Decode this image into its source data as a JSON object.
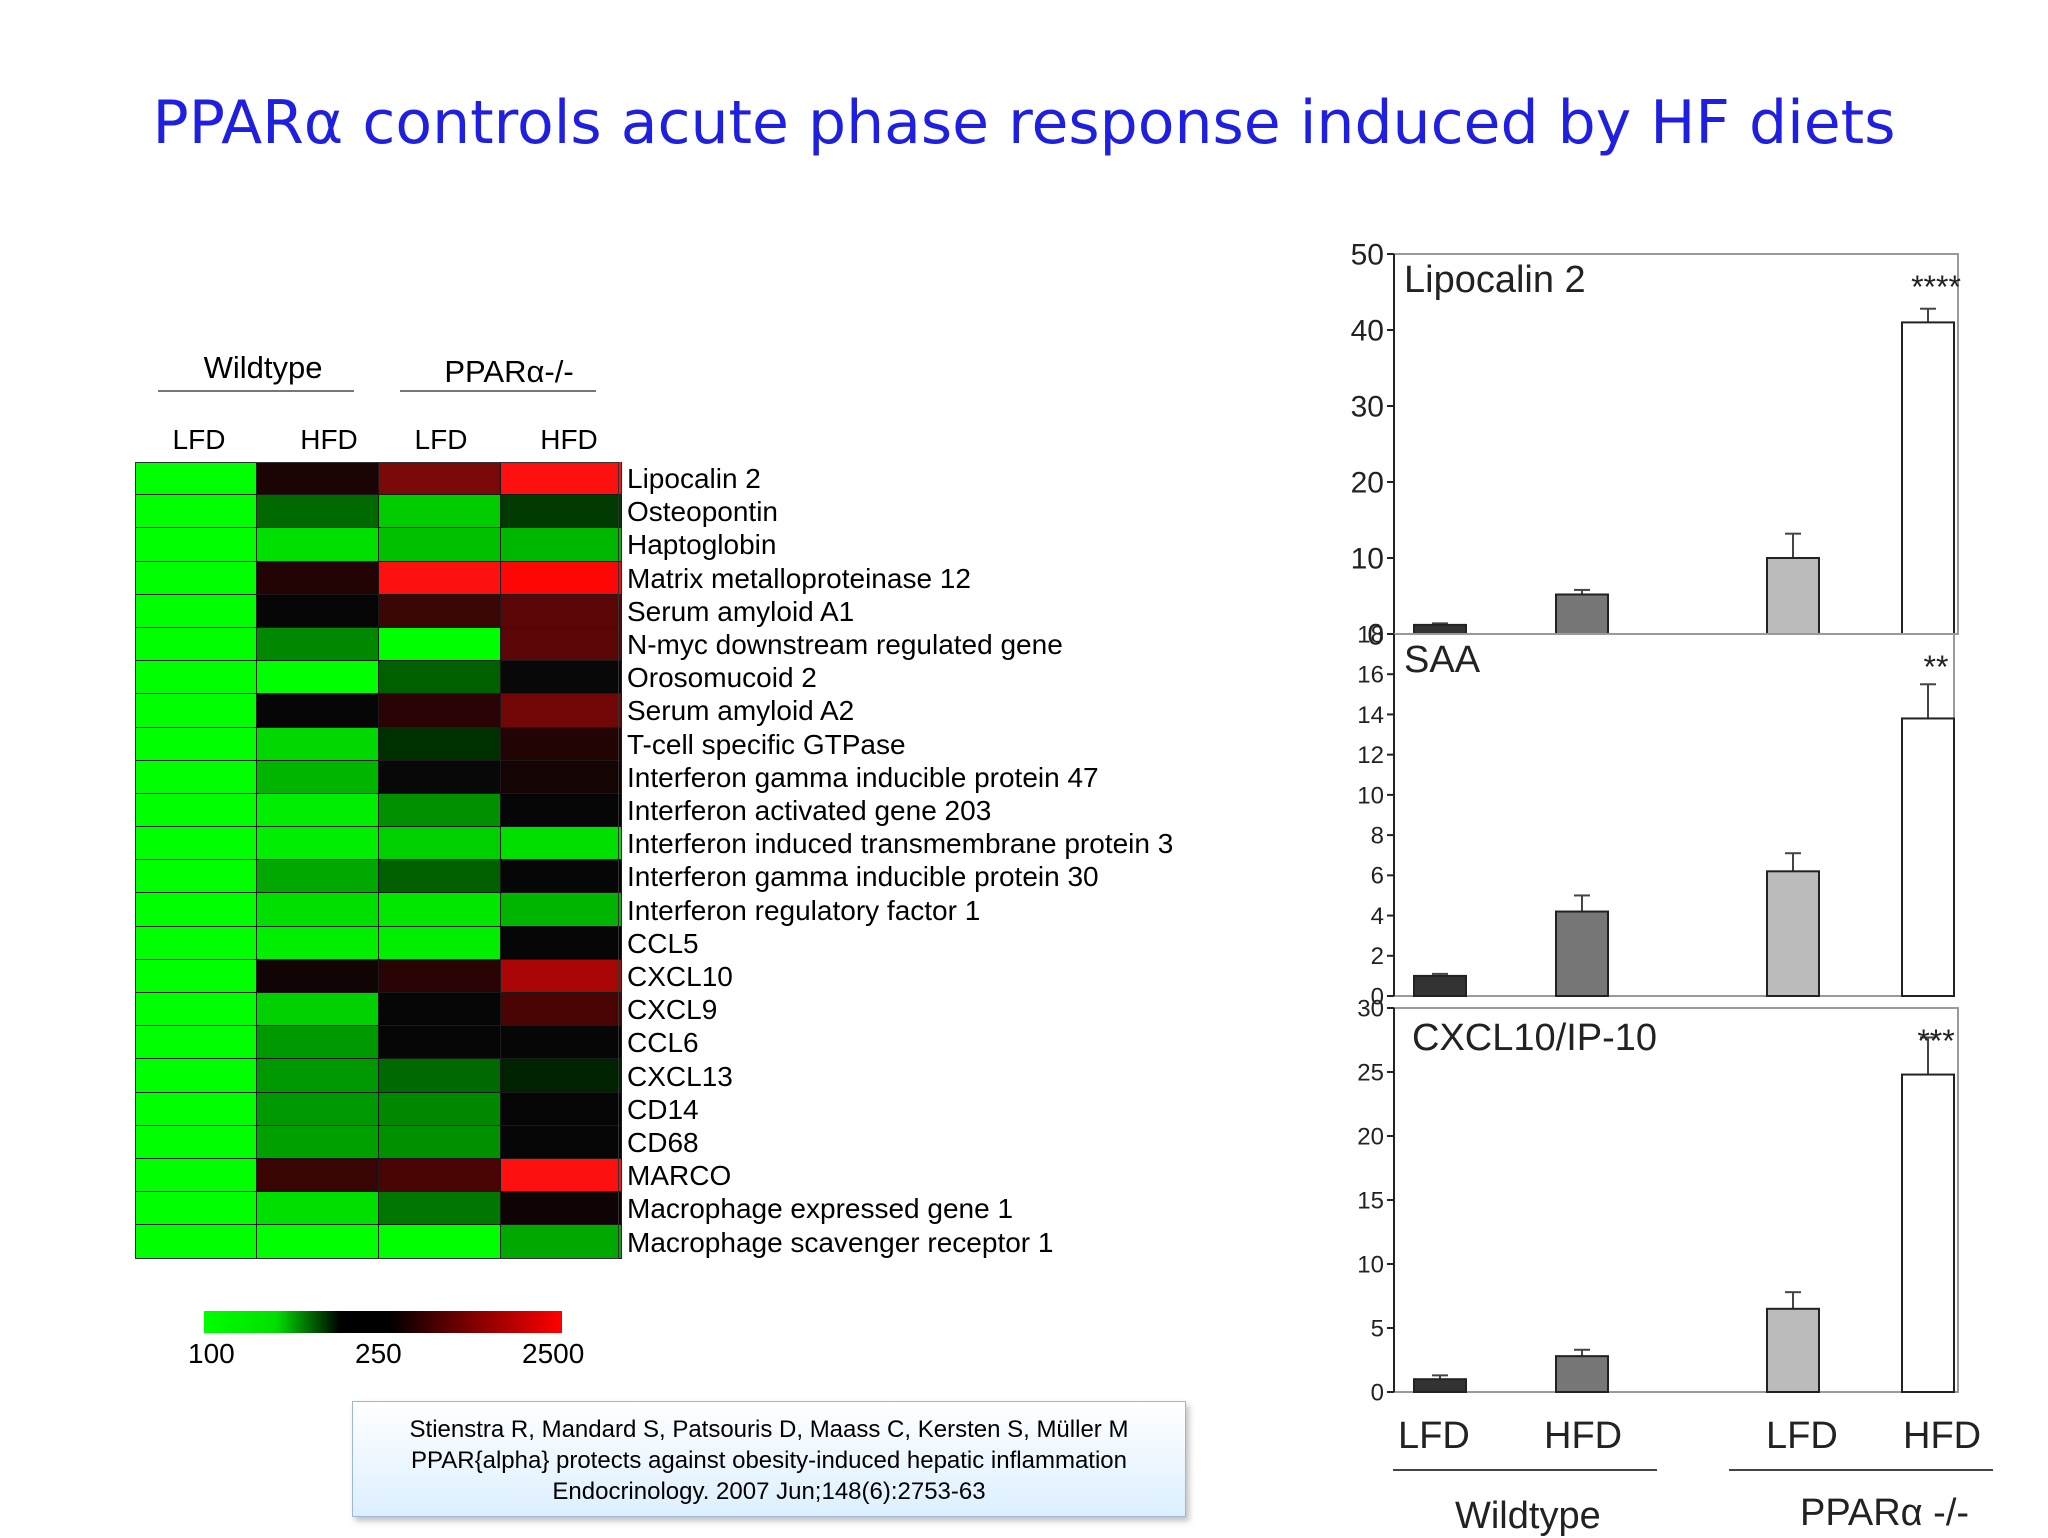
{
  "slide_title": "PPARα controls acute phase response induced by HF diets",
  "heatmap": {
    "group_labels": [
      "Wildtype",
      "PPARα-/-"
    ],
    "column_labels": [
      "LFD",
      "HFD",
      "LFD",
      "HFD"
    ],
    "colorbar_ticks": [
      "100",
      "250",
      "2500"
    ],
    "colors": {
      "low": "#00ff00",
      "mid": "#000000",
      "high": "#ff0000"
    },
    "genes": [
      {
        "name": "Lipocalin 2",
        "cells": [
          "#00ff00",
          "#1a0404",
          "#7a0a0a",
          "#ff1010"
        ]
      },
      {
        "name": "Osteopontin",
        "cells": [
          "#00ff00",
          "#006a00",
          "#00cc00",
          "#003a00"
        ]
      },
      {
        "name": "Haptoglobin",
        "cells": [
          "#00ff00",
          "#00e000",
          "#00c000",
          "#00b800"
        ]
      },
      {
        "name": "Matrix metalloproteinase 12",
        "cells": [
          "#00ff00",
          "#220404",
          "#ff1010",
          "#ff0606"
        ]
      },
      {
        "name": "Serum amyloid A1",
        "cells": [
          "#00ff00",
          "#060606",
          "#3a0606",
          "#5a0606"
        ]
      },
      {
        "name": "N-myc downstream regulated gene",
        "cells": [
          "#00ff00",
          "#008800",
          "#00ff00",
          "#5a0606"
        ]
      },
      {
        "name": "Orosomucoid 2",
        "cells": [
          "#00ff00",
          "#00ff00",
          "#006000",
          "#080808"
        ]
      },
      {
        "name": "Serum amyloid A2",
        "cells": [
          "#00ff00",
          "#060606",
          "#2a0404",
          "#700606"
        ]
      },
      {
        "name": "T-cell specific GTPase",
        "cells": [
          "#00ff00",
          "#00d800",
          "#003000",
          "#220404"
        ]
      },
      {
        "name": "Interferon gamma inducible protein 47",
        "cells": [
          "#00ff00",
          "#00b400",
          "#080808",
          "#140404"
        ]
      },
      {
        "name": "Interferon activated gene 203",
        "cells": [
          "#00ff00",
          "#00ee00",
          "#009000",
          "#060606"
        ]
      },
      {
        "name": "Interferon induced transmembrane protein 3",
        "cells": [
          "#00ff00",
          "#00ee00",
          "#00d000",
          "#00e000"
        ]
      },
      {
        "name": "Interferon gamma inducible protein 30",
        "cells": [
          "#00ff00",
          "#00a800",
          "#006000",
          "#060606"
        ]
      },
      {
        "name": "Interferon regulatory factor 1",
        "cells": [
          "#00ff00",
          "#00e000",
          "#00e800",
          "#00b400"
        ]
      },
      {
        "name": "CCL5",
        "cells": [
          "#00ff00",
          "#00f000",
          "#00f000",
          "#060606"
        ]
      },
      {
        "name": "CXCL10",
        "cells": [
          "#00ff00",
          "#100404",
          "#2a0404",
          "#aa0606"
        ]
      },
      {
        "name": "CXCL9",
        "cells": [
          "#00ff00",
          "#00d000",
          "#060606",
          "#4a0404"
        ]
      },
      {
        "name": "CCL6",
        "cells": [
          "#00ff00",
          "#009800",
          "#060606",
          "#060606"
        ]
      },
      {
        "name": "CXCL13",
        "cells": [
          "#00ff00",
          "#009800",
          "#006a00",
          "#002200"
        ]
      },
      {
        "name": "CD14",
        "cells": [
          "#00ff00",
          "#009800",
          "#008800",
          "#060606"
        ]
      },
      {
        "name": "CD68",
        "cells": [
          "#00ff00",
          "#00a000",
          "#009000",
          "#060606"
        ]
      },
      {
        "name": "MARCO",
        "cells": [
          "#00ff00",
          "#380404",
          "#4a0404",
          "#ff1010"
        ]
      },
      {
        "name": "Macrophage expressed gene 1",
        "cells": [
          "#00ff00",
          "#00e000",
          "#007800",
          "#0e0404"
        ]
      },
      {
        "name": "Macrophage scavenger receptor 1",
        "cells": [
          "#00ff00",
          "#00ff00",
          "#00ff00",
          "#00a800"
        ]
      }
    ]
  },
  "citation": {
    "line1": "Stienstra R, Mandard S, Patsouris D, Maass C, Kersten S, Müller M",
    "line2": "PPAR{alpha} protects against obesity-induced hepatic inflammation",
    "line3": "Endocrinology. 2007 Jun;148(6):2753-63"
  },
  "chart_data": [
    {
      "type": "bar",
      "title": "Lipocalin 2",
      "annotation": "****",
      "categories": [
        "Wildtype LFD",
        "Wildtype HFD",
        "PPARα-/- LFD",
        "PPARα-/- HFD"
      ],
      "values": [
        1.2,
        5.2,
        10,
        41
      ],
      "errors": [
        0.2,
        0.6,
        3.2,
        1.8
      ],
      "bar_colors": [
        "#333333",
        "#777777",
        "#bbbbbb",
        "#ffffff"
      ],
      "ylim": [
        0,
        50
      ],
      "yticks": [
        "0",
        "10",
        "20",
        "30",
        "40",
        "50"
      ]
    },
    {
      "type": "bar",
      "title": "SAA",
      "annotation": "**",
      "categories": [
        "Wildtype LFD",
        "Wildtype HFD",
        "PPARα-/- LFD",
        "PPARα-/- HFD"
      ],
      "values": [
        1,
        4.2,
        6.2,
        13.8
      ],
      "errors": [
        0.1,
        0.8,
        0.9,
        1.7
      ],
      "bar_colors": [
        "#333333",
        "#777777",
        "#bbbbbb",
        "#ffffff"
      ],
      "ylim": [
        0,
        18
      ],
      "yticks": [
        "0",
        "2",
        "4",
        "6",
        "8",
        "10",
        "12",
        "14",
        "16",
        "18"
      ]
    },
    {
      "type": "bar",
      "title": "CXCL10/IP-10",
      "annotation": "***",
      "categories": [
        "Wildtype LFD",
        "Wildtype HFD",
        "PPARα-/- LFD",
        "PPARα-/- HFD"
      ],
      "values": [
        1,
        2.8,
        6.5,
        24.8
      ],
      "errors": [
        0.3,
        0.5,
        1.3,
        2.9
      ],
      "bar_colors": [
        "#333333",
        "#777777",
        "#bbbbbb",
        "#ffffff"
      ],
      "ylim": [
        0,
        30
      ],
      "yticks": [
        "0",
        "5",
        "10",
        "15",
        "20",
        "25",
        "30"
      ]
    }
  ],
  "bar_x_labels": [
    "LFD",
    "HFD",
    "LFD",
    "HFD"
  ],
  "bar_group_labels": [
    "Wildtype",
    "PPARα -/-"
  ]
}
